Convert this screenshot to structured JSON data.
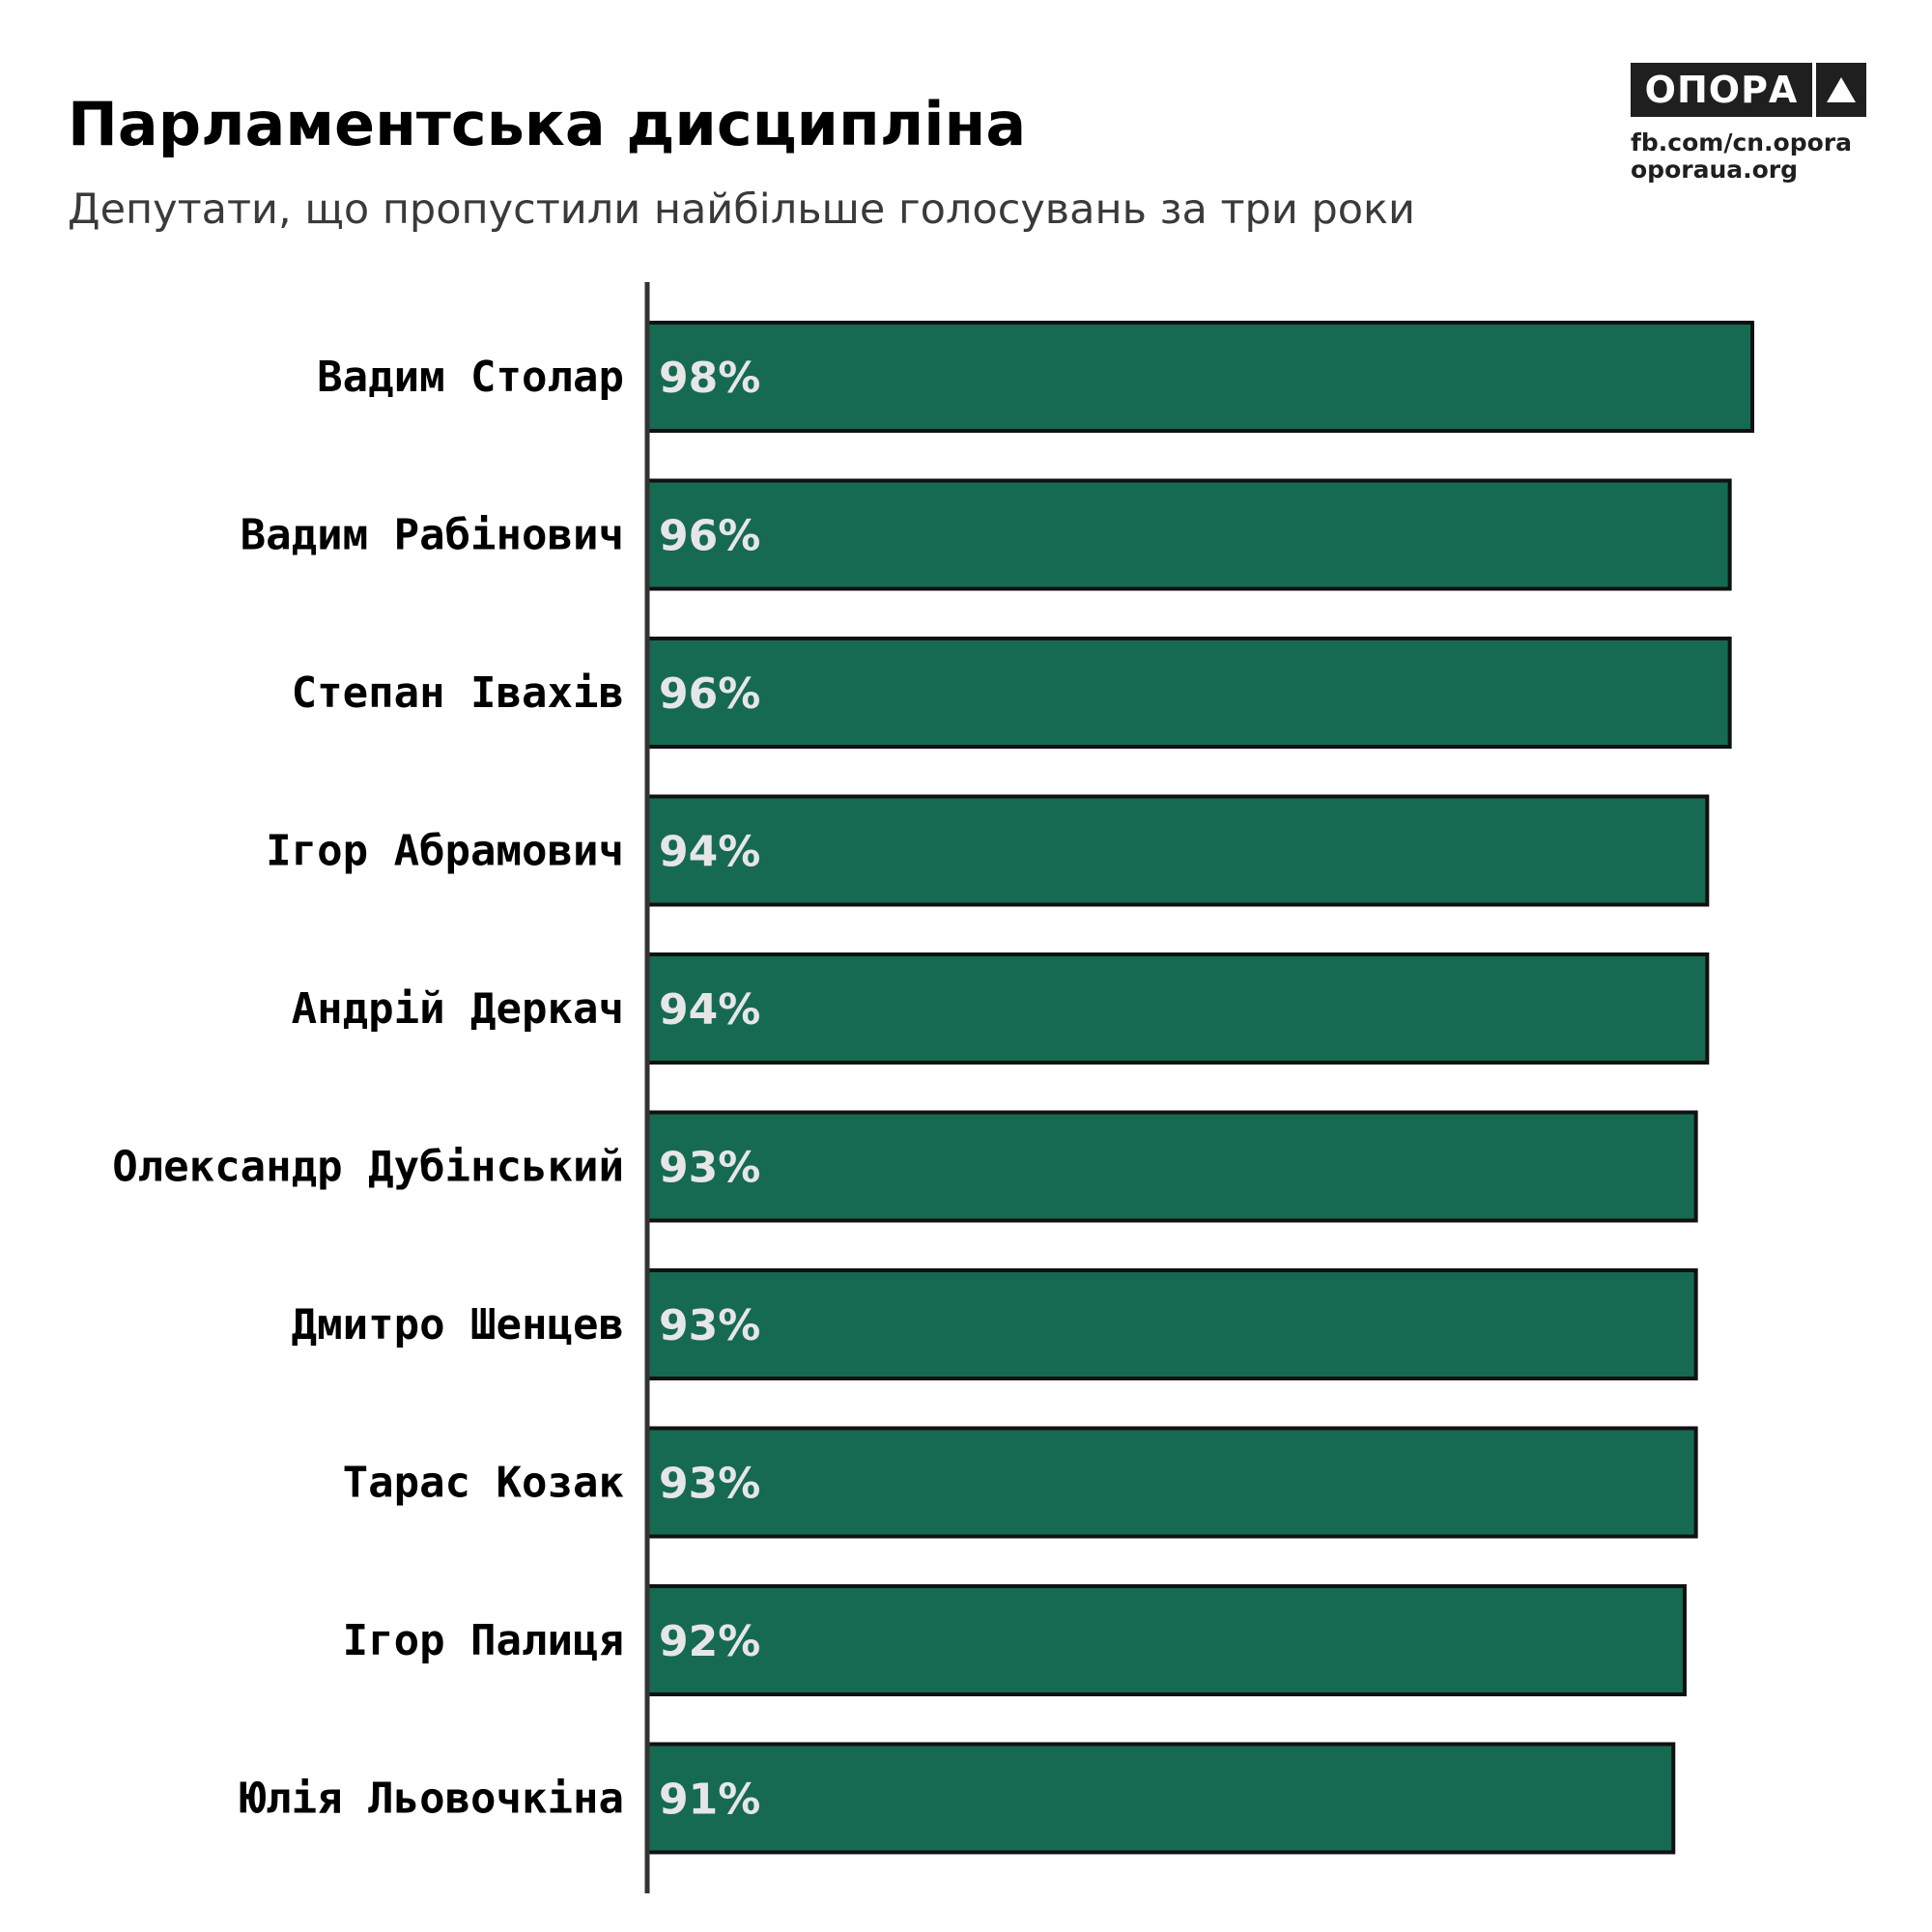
{
  "header": {
    "title": "Парламентська дисципліна",
    "subtitle": "Депутати, що пропустили найбільше голосувань за три роки"
  },
  "brand": {
    "logo_text": "ОПОРА",
    "logo_icon": "triangle-icon",
    "links": [
      "fb.com/cn.opora",
      "oporaua.org"
    ]
  },
  "colors": {
    "bar_fill": "#166a52",
    "bar_stroke": "#111111",
    "axis": "#333333",
    "value_text": "#e6e6e6",
    "logo_bg": "#1f1f1f"
  },
  "chart_data": {
    "type": "bar",
    "orientation": "horizontal",
    "categories": [
      "Вадим Столар",
      "Вадим Рабінович",
      "Степан Івахів",
      "Ігор Абрамович",
      "Андрій Деркач",
      "Олександр Дубінський",
      "Дмитро Шенцев",
      "Тарас Козак",
      "Ігор Палиця",
      "Юлія Льовочкіна"
    ],
    "values": [
      98,
      96,
      96,
      94,
      94,
      93,
      93,
      93,
      92,
      91
    ],
    "value_labels": [
      "98%",
      "96%",
      "96%",
      "94%",
      "94%",
      "93%",
      "93%",
      "93%",
      "92%",
      "91%"
    ],
    "title": "Парламентська дисципліна",
    "subtitle": "Депутати, що пропустили найбільше голосувань за три роки",
    "xlabel": "",
    "ylabel": "",
    "xlim": [
      0,
      100
    ],
    "grid": false,
    "legend": "none"
  }
}
